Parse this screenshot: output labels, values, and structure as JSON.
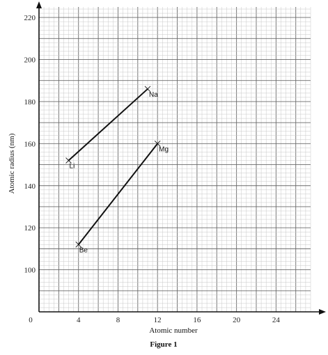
{
  "chart_data": {
    "type": "line",
    "xlabel": "Atomic number",
    "ylabel": "Atomic radius (nm)",
    "caption": "Figure 1",
    "origin_label": "0",
    "xlim": [
      0,
      27.5
    ],
    "ylim": [
      80,
      225
    ],
    "x_ticks": [
      4,
      8,
      12,
      16,
      20,
      24
    ],
    "y_ticks": [
      100,
      120,
      140,
      160,
      180,
      200,
      220
    ],
    "grid": true,
    "series": [
      {
        "points": [
          {
            "x": 3,
            "y": 152,
            "label": "Li"
          },
          {
            "x": 11,
            "y": 186,
            "label": "Na"
          }
        ]
      },
      {
        "points": [
          {
            "x": 4,
            "y": 112,
            "label": "Be"
          },
          {
            "x": 12,
            "y": 160,
            "label": "Mg"
          }
        ]
      }
    ]
  }
}
